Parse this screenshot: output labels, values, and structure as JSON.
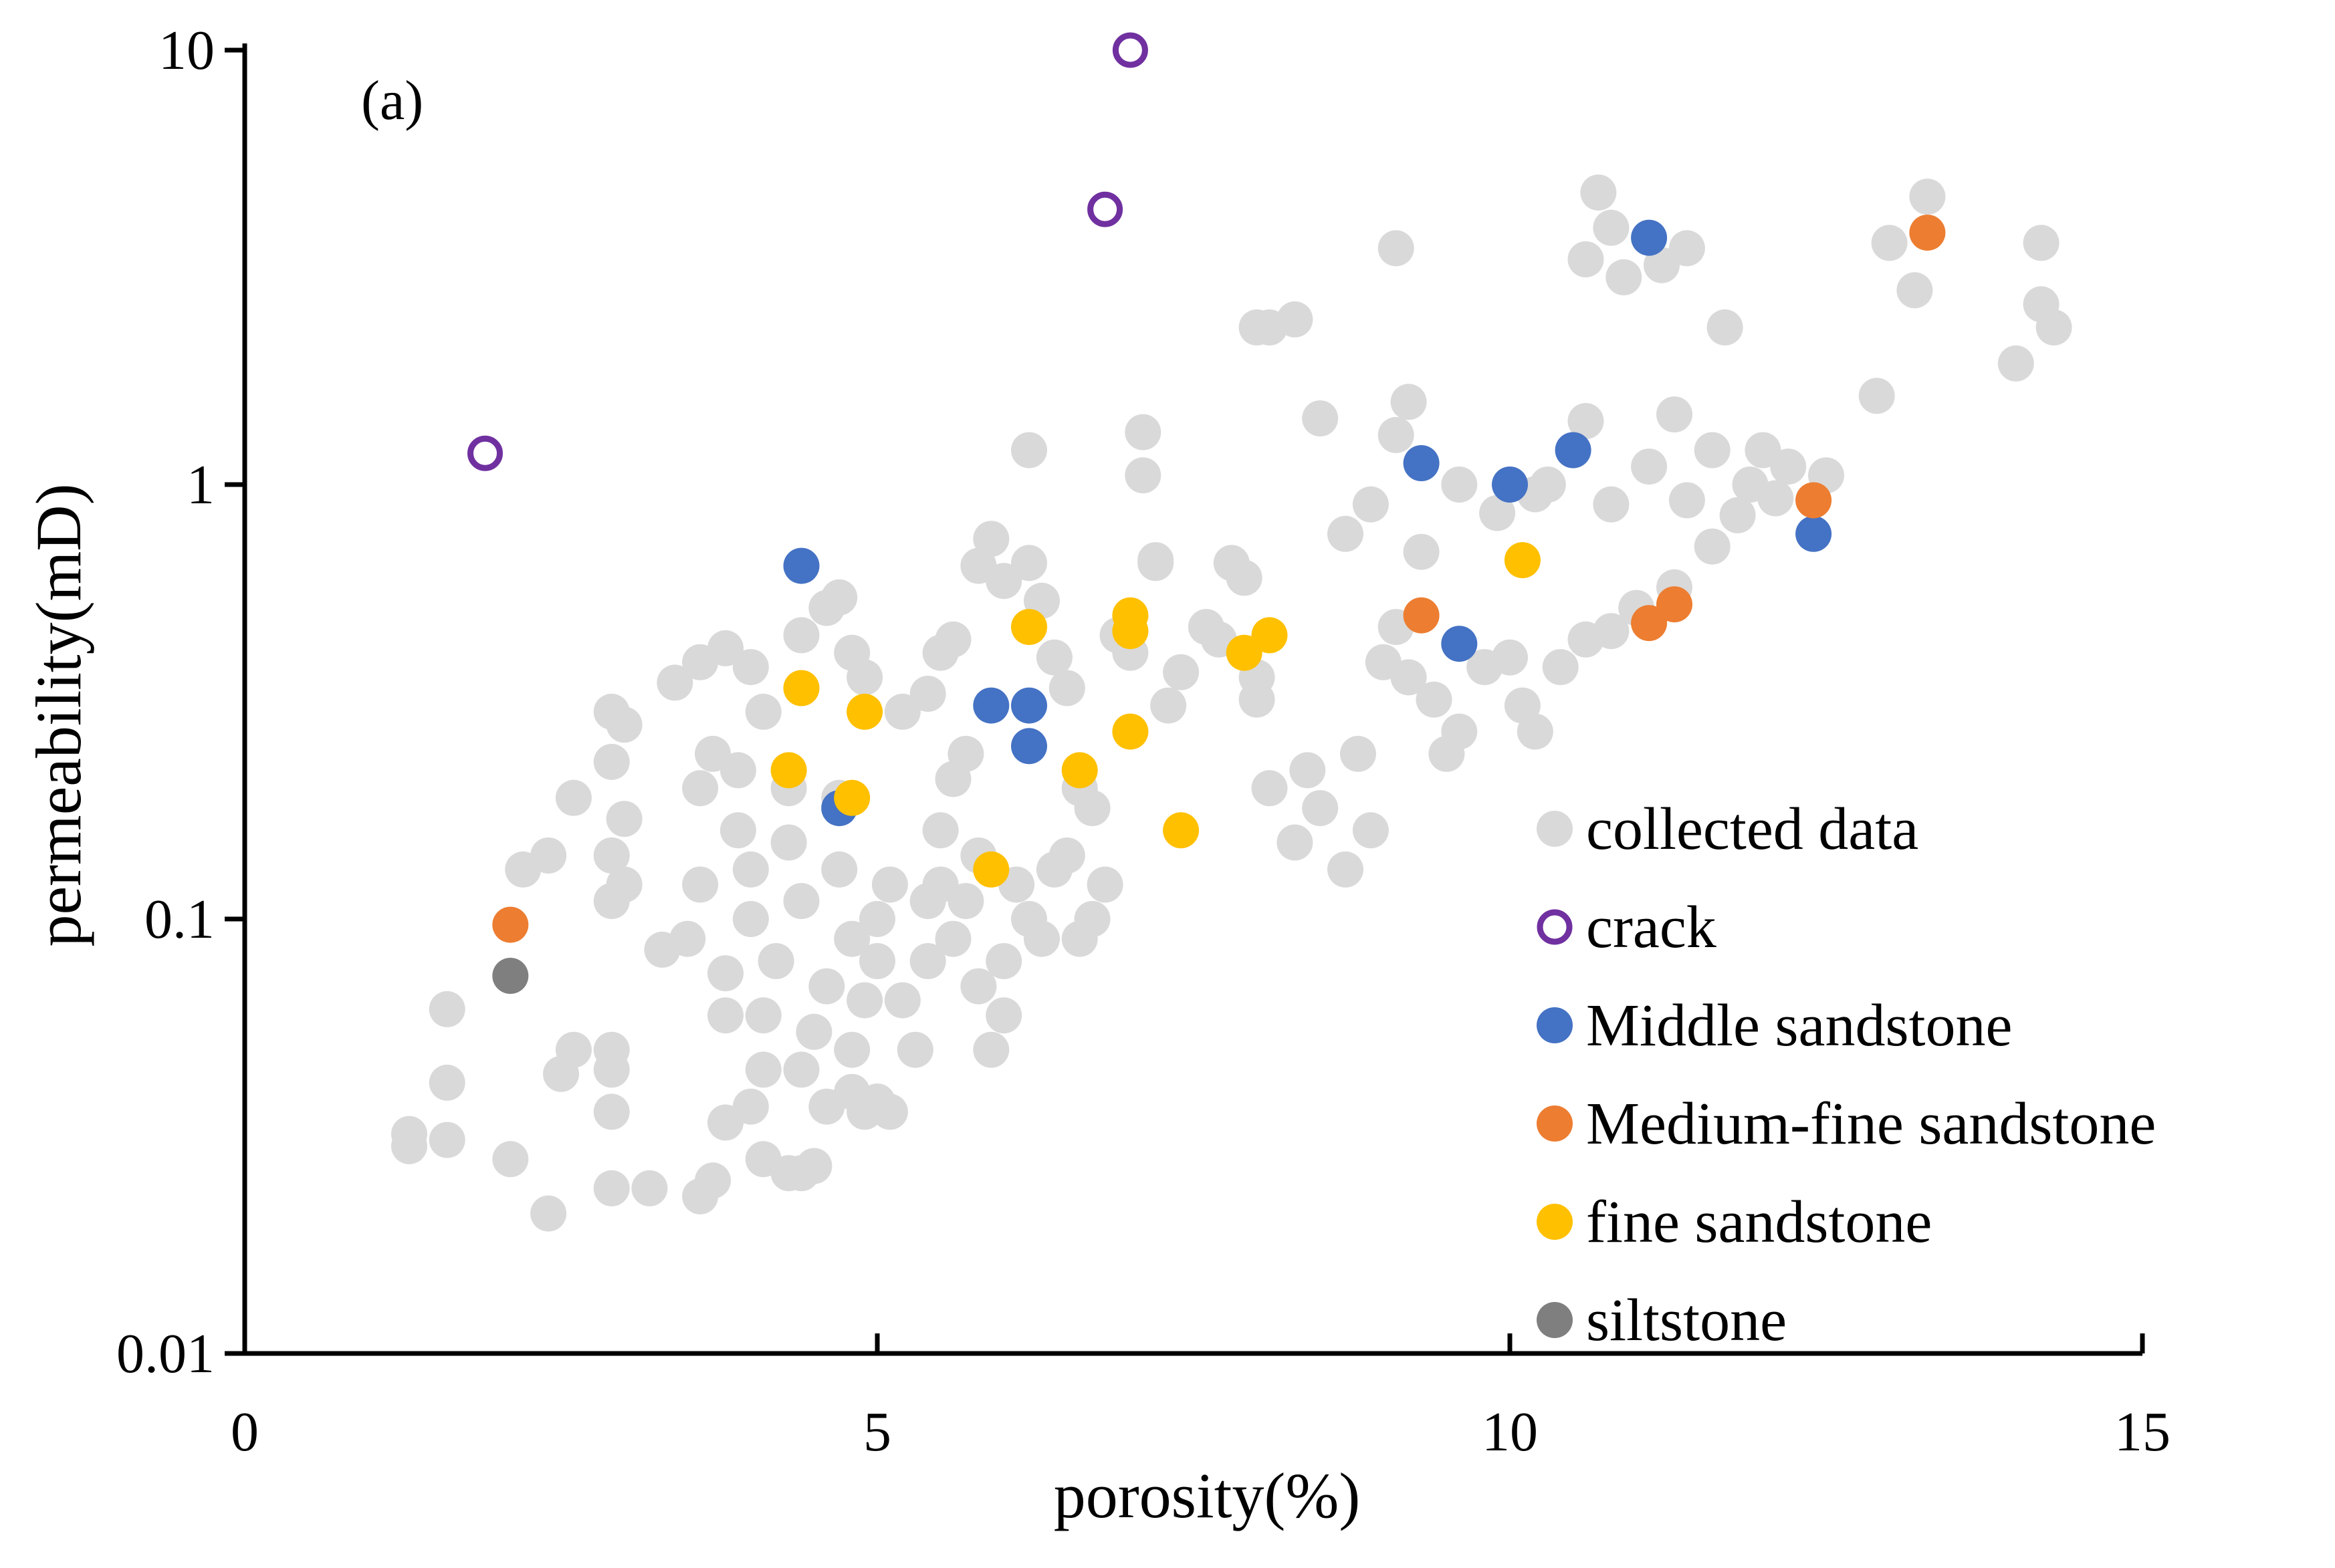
{
  "chart_data": {
    "type": "scatter",
    "panel_label": "(a)",
    "xlabel": "porosity(%)",
    "ylabel": "permeability(mD)",
    "xlim": [
      0,
      15
    ],
    "ylim": [
      0.01,
      10
    ],
    "yscale": "log",
    "xticks": [
      0,
      5,
      10,
      15
    ],
    "xtick_labels": [
      "0",
      "5",
      "10",
      "15"
    ],
    "yticks": [
      0.01,
      0.1,
      1,
      10
    ],
    "ytick_labels": [
      "0.01",
      "0.1",
      "1",
      "10"
    ],
    "grid": false,
    "legend_position": "bottom-right",
    "series": [
      {
        "name": "collected data",
        "color": "#d9d9d9",
        "marker": "filled-circle",
        "points": [
          [
            1.3,
            0.03
          ],
          [
            1.3,
            0.032
          ],
          [
            1.6,
            0.031
          ],
          [
            1.6,
            0.042
          ],
          [
            1.6,
            0.062
          ],
          [
            2.1,
            0.028
          ],
          [
            2.4,
            0.021
          ],
          [
            2.5,
            0.044
          ],
          [
            2.6,
            0.05
          ],
          [
            2.9,
            0.024
          ],
          [
            3.2,
            0.024
          ],
          [
            3.6,
            0.023
          ],
          [
            3.7,
            0.025
          ],
          [
            2.9,
            0.036
          ],
          [
            2.9,
            0.045
          ],
          [
            2.9,
            0.05
          ],
          [
            4.1,
            0.028
          ],
          [
            4.3,
            0.026
          ],
          [
            4.4,
            0.026
          ],
          [
            4.5,
            0.027
          ],
          [
            4.6,
            0.037
          ],
          [
            4.8,
            0.04
          ],
          [
            4.9,
            0.036
          ],
          [
            5.0,
            0.038
          ],
          [
            5.1,
            0.036
          ],
          [
            3.8,
            0.034
          ],
          [
            4.0,
            0.037
          ],
          [
            2.2,
            0.13
          ],
          [
            2.4,
            0.14
          ],
          [
            2.6,
            0.19
          ],
          [
            2.9,
            0.11
          ],
          [
            2.9,
            0.14
          ],
          [
            2.9,
            0.23
          ],
          [
            2.9,
            0.3
          ],
          [
            3.0,
            0.28
          ],
          [
            3.0,
            0.17
          ],
          [
            3.0,
            0.12
          ],
          [
            3.3,
            0.085
          ],
          [
            3.5,
            0.09
          ],
          [
            3.6,
            0.12
          ],
          [
            3.6,
            0.2
          ],
          [
            3.7,
            0.24
          ],
          [
            3.8,
            0.06
          ],
          [
            3.8,
            0.075
          ],
          [
            3.9,
            0.16
          ],
          [
            3.9,
            0.22
          ],
          [
            4.0,
            0.1
          ],
          [
            4.0,
            0.13
          ],
          [
            4.1,
            0.045
          ],
          [
            4.1,
            0.06
          ],
          [
            4.2,
            0.08
          ],
          [
            4.3,
            0.15
          ],
          [
            4.3,
            0.2
          ],
          [
            4.4,
            0.11
          ],
          [
            4.4,
            0.045
          ],
          [
            4.5,
            0.055
          ],
          [
            4.6,
            0.07
          ],
          [
            4.7,
            0.13
          ],
          [
            4.7,
            0.19
          ],
          [
            4.8,
            0.09
          ],
          [
            4.8,
            0.05
          ],
          [
            4.9,
            0.065
          ],
          [
            5.0,
            0.1
          ],
          [
            5.0,
            0.08
          ],
          [
            5.1,
            0.12
          ],
          [
            5.2,
            0.065
          ],
          [
            5.3,
            0.05
          ],
          [
            5.4,
            0.08
          ],
          [
            5.4,
            0.11
          ],
          [
            5.5,
            0.12
          ],
          [
            5.5,
            0.16
          ],
          [
            5.6,
            0.21
          ],
          [
            5.6,
            0.09
          ],
          [
            5.7,
            0.11
          ],
          [
            5.8,
            0.14
          ],
          [
            5.8,
            0.07
          ],
          [
            5.9,
            0.05
          ],
          [
            6.0,
            0.06
          ],
          [
            6.0,
            0.08
          ],
          [
            6.1,
            0.12
          ],
          [
            6.2,
            0.1
          ],
          [
            6.3,
            0.09
          ],
          [
            6.4,
            0.13
          ],
          [
            6.6,
            0.09
          ],
          [
            6.7,
            0.1
          ],
          [
            6.8,
            0.12
          ],
          [
            6.5,
            0.14
          ],
          [
            3.4,
            0.35
          ],
          [
            3.6,
            0.39
          ],
          [
            3.8,
            0.42
          ],
          [
            4.0,
            0.38
          ],
          [
            4.1,
            0.3
          ],
          [
            4.4,
            0.45
          ],
          [
            4.6,
            0.52
          ],
          [
            4.7,
            0.55
          ],
          [
            4.8,
            0.41
          ],
          [
            4.9,
            0.36
          ],
          [
            5.2,
            0.3
          ],
          [
            5.4,
            0.33
          ],
          [
            5.5,
            0.41
          ],
          [
            5.6,
            0.44
          ],
          [
            5.7,
            0.24
          ],
          [
            5.8,
            0.65
          ],
          [
            5.9,
            0.75
          ],
          [
            6.0,
            0.6
          ],
          [
            6.2,
            0.66
          ],
          [
            6.3,
            0.54
          ],
          [
            6.4,
            0.4
          ],
          [
            6.5,
            0.34
          ],
          [
            6.6,
            0.2
          ],
          [
            6.7,
            0.18
          ],
          [
            6.9,
            0.45
          ],
          [
            7.0,
            0.41
          ],
          [
            7.2,
            0.66
          ],
          [
            7.3,
            0.31
          ],
          [
            7.4,
            0.37
          ],
          [
            7.6,
            0.47
          ],
          [
            7.7,
            0.44
          ],
          [
            7.8,
            0.66
          ],
          [
            7.9,
            0.61
          ],
          [
            8.0,
            0.36
          ],
          [
            8.0,
            0.32
          ],
          [
            8.1,
            0.2
          ],
          [
            8.3,
            0.15
          ],
          [
            8.4,
            0.22
          ],
          [
            8.5,
            0.18
          ],
          [
            8.7,
            0.13
          ],
          [
            8.8,
            0.24
          ],
          [
            8.9,
            0.16
          ],
          [
            9.0,
            0.39
          ],
          [
            9.1,
            0.47
          ],
          [
            9.2,
            0.36
          ],
          [
            9.4,
            0.32
          ],
          [
            9.5,
            0.24
          ],
          [
            9.6,
            0.27
          ],
          [
            9.8,
            0.38
          ],
          [
            10.0,
            0.4
          ],
          [
            10.1,
            0.31
          ],
          [
            10.2,
            0.27
          ],
          [
            10.4,
            0.38
          ],
          [
            10.6,
            0.44
          ],
          [
            10.8,
            0.46
          ],
          [
            11.0,
            0.52
          ],
          [
            11.3,
            0.58
          ],
          [
            11.6,
            0.72
          ],
          [
            11.8,
            0.85
          ],
          [
            12.1,
            0.93
          ],
          [
            6.2,
            1.2
          ],
          [
            7.1,
            1.32
          ],
          [
            7.1,
            1.05
          ],
          [
            7.2,
            0.67
          ],
          [
            8.0,
            2.3
          ],
          [
            8.1,
            2.3
          ],
          [
            8.3,
            2.4
          ],
          [
            8.5,
            1.42
          ],
          [
            8.7,
            0.77
          ],
          [
            8.9,
            0.9
          ],
          [
            9.1,
            1.3
          ],
          [
            9.2,
            1.55
          ],
          [
            9.3,
            0.7
          ],
          [
            9.6,
            1.0
          ],
          [
            9.9,
            0.86
          ],
          [
            10.2,
            0.95
          ],
          [
            10.3,
            1.0
          ],
          [
            10.6,
            1.4
          ],
          [
            10.8,
            0.9
          ],
          [
            11.1,
            1.1
          ],
          [
            11.3,
            1.45
          ],
          [
            11.4,
            0.92
          ],
          [
            11.6,
            1.2
          ],
          [
            11.9,
            1.0
          ],
          [
            12.0,
            1.2
          ],
          [
            12.2,
            1.1
          ],
          [
            12.5,
            1.05
          ],
          [
            12.9,
            1.6
          ],
          [
            9.1,
            3.5
          ],
          [
            10.6,
            3.3
          ],
          [
            10.7,
            4.7
          ],
          [
            10.8,
            3.9
          ],
          [
            10.9,
            3.0
          ],
          [
            11.2,
            3.2
          ],
          [
            11.4,
            3.5
          ],
          [
            11.7,
            2.3
          ],
          [
            13.0,
            3.6
          ],
          [
            13.2,
            2.8
          ],
          [
            13.3,
            4.6
          ],
          [
            14.0,
            1.9
          ],
          [
            14.2,
            3.6
          ],
          [
            14.2,
            2.6
          ],
          [
            14.3,
            2.3
          ]
        ]
      },
      {
        "name": "crack",
        "color": "#7030a0",
        "marker": "hollow-circle",
        "points": [
          [
            1.9,
            1.18
          ],
          [
            6.8,
            4.3
          ],
          [
            7.0,
            10.0
          ]
        ]
      },
      {
        "name": "Middle sandstone",
        "color": "#4472c4",
        "marker": "filled-circle",
        "points": [
          [
            4.4,
            0.65
          ],
          [
            4.7,
            0.18
          ],
          [
            5.9,
            0.31
          ],
          [
            6.2,
            0.31
          ],
          [
            6.2,
            0.25
          ],
          [
            9.3,
            1.12
          ],
          [
            9.6,
            0.43
          ],
          [
            10.0,
            1.0
          ],
          [
            10.5,
            1.2
          ],
          [
            11.1,
            3.7
          ],
          [
            12.4,
            0.77
          ]
        ]
      },
      {
        "name": "Medium-fine sandstone",
        "color": "#ed7d31",
        "marker": "filled-circle",
        "points": [
          [
            2.1,
            0.097
          ],
          [
            9.3,
            0.5
          ],
          [
            11.1,
            0.48
          ],
          [
            11.3,
            0.53
          ],
          [
            12.4,
            0.92
          ],
          [
            13.3,
            3.8
          ]
        ]
      },
      {
        "name": "fine sandstone",
        "color": "#ffc000",
        "marker": "filled-circle",
        "points": [
          [
            4.3,
            0.22
          ],
          [
            4.4,
            0.34
          ],
          [
            4.8,
            0.19
          ],
          [
            4.9,
            0.3
          ],
          [
            5.9,
            0.13
          ],
          [
            6.2,
            0.47
          ],
          [
            6.6,
            0.22
          ],
          [
            7.0,
            0.5
          ],
          [
            7.0,
            0.46
          ],
          [
            7.0,
            0.27
          ],
          [
            7.4,
            0.16
          ],
          [
            7.9,
            0.41
          ],
          [
            8.1,
            0.45
          ],
          [
            10.1,
            0.67
          ]
        ]
      },
      {
        "name": "siltstone",
        "color": "#7f7f7f",
        "marker": "filled-circle",
        "points": [
          [
            2.1,
            0.074
          ]
        ]
      }
    ]
  }
}
